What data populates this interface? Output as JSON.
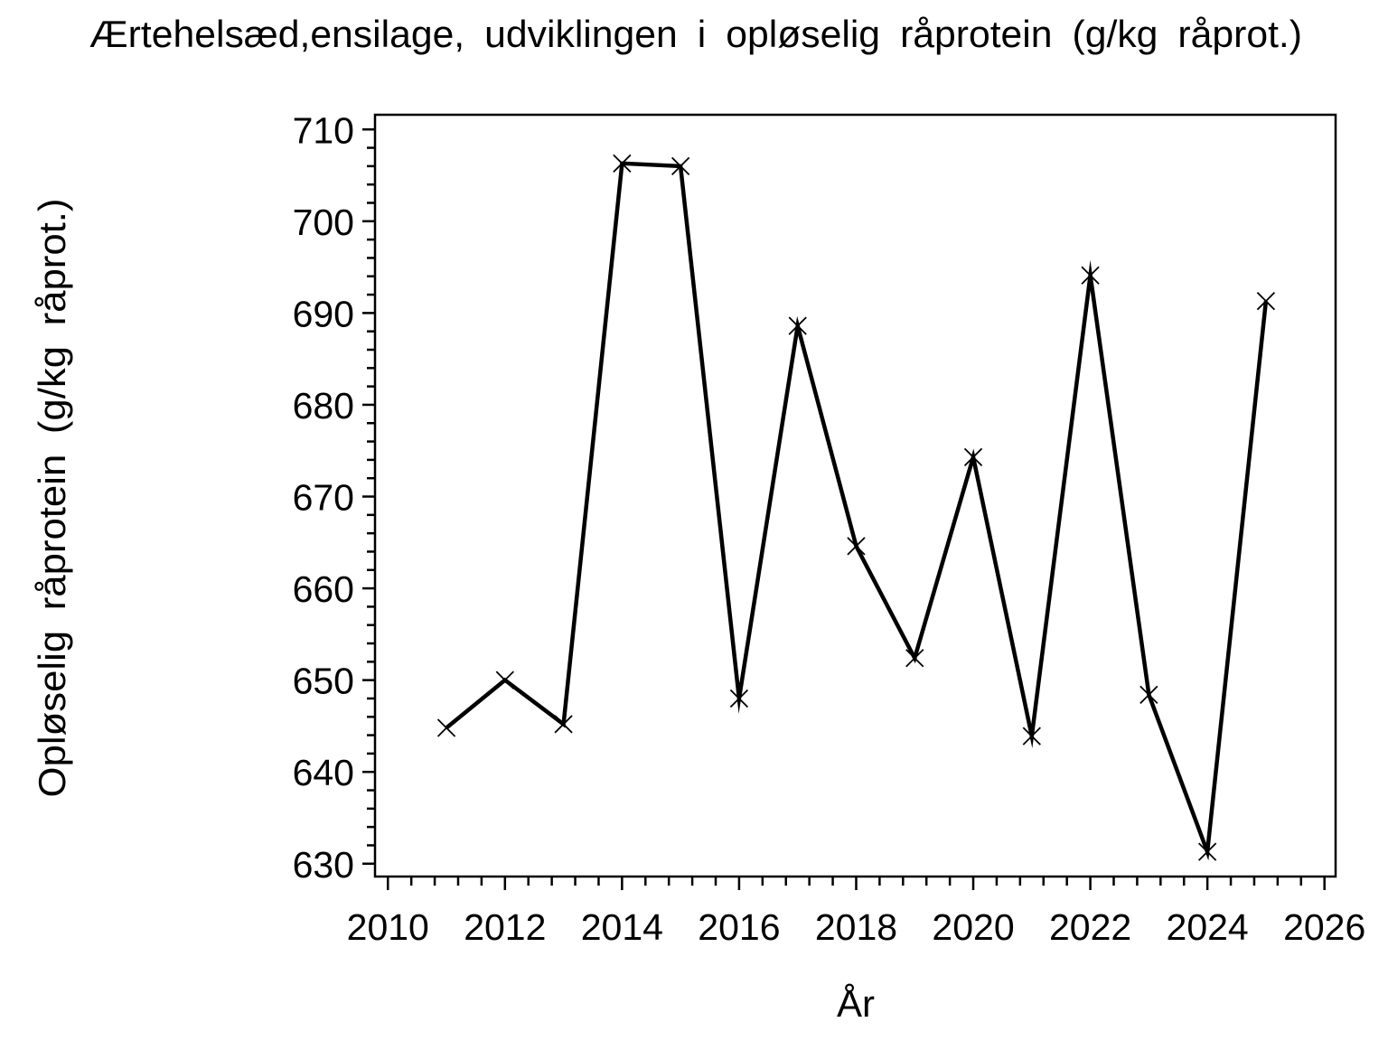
{
  "chart_data": {
    "type": "line",
    "title": "Ærtehelsæd,ensilage, udviklingen i opløselig råprotein (g/kg råprot.)",
    "xlabel": "År",
    "ylabel": "Opløselig råprotein (g/kg råprot.)",
    "x": [
      2011,
      2012,
      2013,
      2014,
      2015,
      2016,
      2017,
      2018,
      2019,
      2020,
      2021,
      2022,
      2023,
      2024,
      2025
    ],
    "y": [
      644.8,
      650.0,
      645.2,
      706.3,
      706.0,
      648.0,
      688.6,
      664.6,
      652.4,
      674.3,
      643.9,
      694.1,
      648.4,
      631.3,
      691.3
    ],
    "xlim": [
      2009.78,
      2026.19
    ],
    "ylim": [
      628.6,
      711.6
    ],
    "xticks": {
      "major_start": 2010,
      "major_end": 2026,
      "major_step": 2,
      "minor_step": 0.4,
      "labels": [
        "2010",
        "2012",
        "2014",
        "2016",
        "2018",
        "2020",
        "2022",
        "2024",
        "2026"
      ]
    },
    "yticks": {
      "major_start": 630,
      "major_end": 710,
      "major_step": 10,
      "minor_step": 2,
      "labels": [
        "630",
        "640",
        "650",
        "660",
        "670",
        "680",
        "690",
        "700",
        "710"
      ]
    },
    "marker": "x",
    "line_color": "#000000",
    "text_color": "#000000",
    "background_color": "#ffffff",
    "grid": false,
    "legend": "none"
  }
}
